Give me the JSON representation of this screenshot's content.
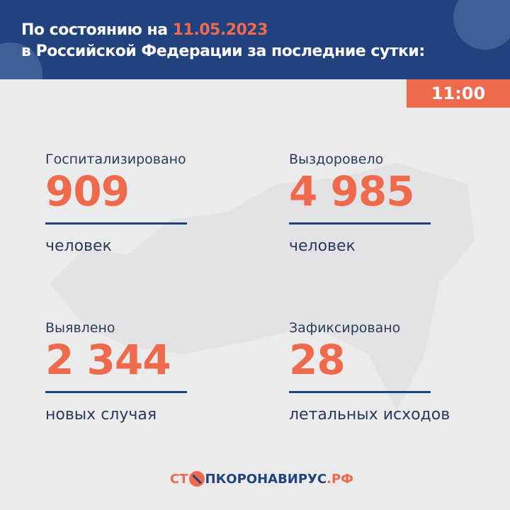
{
  "header": {
    "line1_prefix": "По состоянию на ",
    "date": "11.05.2023",
    "line2": "в Российской Федерации за последние сутки:"
  },
  "time": "11:00",
  "stats": [
    {
      "label": "Госпитализировано",
      "value": "909",
      "unit": "человек"
    },
    {
      "label": "Выздоровело",
      "value": "4 985",
      "unit": "человек"
    },
    {
      "label": "Выявлено",
      "value": "2 344",
      "unit": "новых случая"
    },
    {
      "label": "Зафиксировано",
      "value": "28",
      "unit": "летальных исходов"
    }
  ],
  "logo": {
    "part1": "СТ",
    "part2": "ПКОРОНАВИРУС",
    "part3": ".РФ"
  },
  "colors": {
    "brand_blue": "#22427f",
    "accent": "#ef6a4c"
  }
}
